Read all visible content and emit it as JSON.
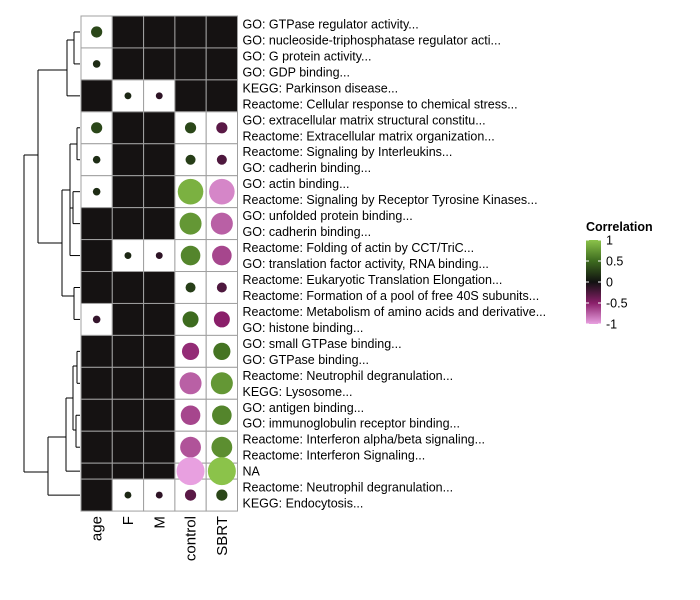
{
  "chart_data": {
    "type": "heatmap",
    "columns": [
      "age",
      "F",
      "M",
      "control",
      "SBRT"
    ],
    "legend": {
      "title": "Correlation",
      "ticks": [
        "1",
        "0.5",
        "0",
        "-0.5",
        "-1"
      ],
      "tick_values": [
        1,
        0.5,
        0,
        -0.5,
        -1
      ],
      "range": [
        -1,
        1
      ]
    },
    "colors": {
      "na": "#ffffff",
      "negative_end": "#e8a0e0",
      "negative_mid": "#8a1f6a",
      "zero": "#111111",
      "positive_mid": "#3d6b1f",
      "positive_end": "#8bc34a",
      "tile": "#151212",
      "grid": "#a0a0a0"
    },
    "rows": [
      {
        "id": "r1",
        "label": "GO: GTPase regulator activity...",
        "values": [
          0.3,
          null,
          null,
          null,
          null
        ]
      },
      {
        "id": "r2",
        "label": "GO: nucleoside-triphosphatase regulator acti...",
        "values": [
          0.3,
          null,
          null,
          null,
          null
        ]
      },
      {
        "id": "r3",
        "label": "GO: G protein activity...",
        "values": [
          0.15,
          null,
          null,
          null,
          null
        ]
      },
      {
        "id": "r4",
        "label": "GO: GDP binding...",
        "values": [
          0.15,
          null,
          null,
          null,
          null
        ]
      },
      {
        "id": "r5",
        "label": "KEGG: Parkinson disease...",
        "values": [
          null,
          0.12,
          -0.12,
          null,
          null
        ]
      },
      {
        "id": "r6",
        "label": "Reactome: Cellular response to chemical stress...",
        "values": [
          null,
          0.12,
          -0.12,
          null,
          null
        ]
      },
      {
        "id": "r7",
        "label": "GO: extracellular matrix structural constitu...",
        "values": [
          0.3,
          null,
          null,
          0.3,
          -0.3
        ]
      },
      {
        "id": "r8",
        "label": "Reactome: Extracellular matrix organization...",
        "values": [
          0.3,
          null,
          null,
          0.3,
          -0.3
        ]
      },
      {
        "id": "r9",
        "label": "Reactome: Signaling by Interleukins...",
        "values": [
          0.15,
          null,
          null,
          0.25,
          -0.25
        ]
      },
      {
        "id": "r10",
        "label": "GO: cadherin binding...",
        "values": [
          0.15,
          null,
          null,
          0.25,
          -0.25
        ]
      },
      {
        "id": "r11",
        "label": "GO: actin binding...",
        "values": [
          0.15,
          null,
          null,
          0.9,
          -0.9
        ]
      },
      {
        "id": "r12",
        "label": "Reactome: Signaling by Receptor Tyrosine Kinases...",
        "values": [
          0.15,
          null,
          null,
          0.9,
          -0.9
        ]
      },
      {
        "id": "r13",
        "label": "GO: unfolded protein binding...",
        "values": [
          null,
          null,
          null,
          0.75,
          -0.75
        ]
      },
      {
        "id": "r14",
        "label": "GO: cadherin binding...",
        "values": [
          null,
          null,
          null,
          0.75,
          -0.75
        ]
      },
      {
        "id": "r15",
        "label": "Reactome: Folding of actin by CCT/TriC...",
        "values": [
          null,
          0.12,
          -0.12,
          0.65,
          -0.65
        ]
      },
      {
        "id": "r16",
        "label": "GO: translation factor activity, RNA binding...",
        "values": [
          null,
          0.12,
          -0.12,
          0.65,
          -0.65
        ]
      },
      {
        "id": "r17",
        "label": "Reactome: Eukaryotic Translation Elongation...",
        "values": [
          null,
          null,
          null,
          0.25,
          -0.25
        ]
      },
      {
        "id": "r18",
        "label": "Reactome: Formation of a pool of free 40S subunits...",
        "values": [
          null,
          null,
          null,
          0.25,
          -0.25
        ]
      },
      {
        "id": "r19",
        "label": "Reactome: Metabolism of amino acids and derivative...",
        "values": [
          -0.15,
          null,
          null,
          0.5,
          -0.5
        ]
      },
      {
        "id": "r20",
        "label": "GO: histone binding...",
        "values": [
          -0.15,
          null,
          null,
          0.5,
          -0.5
        ]
      },
      {
        "id": "r21",
        "label": "GO: small GTPase binding...",
        "values": [
          null,
          null,
          null,
          -0.55,
          0.55
        ]
      },
      {
        "id": "r22",
        "label": "GO: GTPase binding...",
        "values": [
          null,
          null,
          null,
          -0.55,
          0.55
        ]
      },
      {
        "id": "r23",
        "label": "Reactome: Neutrophil degranulation...",
        "values": [
          null,
          null,
          null,
          -0.75,
          0.75
        ]
      },
      {
        "id": "r24",
        "label": "KEGG: Lysosome...",
        "values": [
          null,
          null,
          null,
          -0.75,
          0.75
        ]
      },
      {
        "id": "r25",
        "label": "GO: antigen binding...",
        "values": [
          null,
          null,
          null,
          -0.65,
          0.65
        ]
      },
      {
        "id": "r26",
        "label": "GO: immunoglobulin receptor binding...",
        "values": [
          null,
          null,
          null,
          -0.65,
          0.65
        ]
      },
      {
        "id": "r27",
        "label": "Reactome: Interferon alpha/beta signaling...",
        "values": [
          null,
          null,
          null,
          -0.7,
          0.7
        ]
      },
      {
        "id": "r28",
        "label": "Reactome: Interferon Signaling...",
        "values": [
          null,
          null,
          null,
          -0.7,
          0.7
        ]
      },
      {
        "id": "r29",
        "label": "NA",
        "values": [
          null,
          null,
          null,
          -1,
          1
        ]
      },
      {
        "id": "r30",
        "label": "Reactome: Neutrophil degranulation...",
        "values": [
          null,
          0.12,
          -0.12,
          -0.3,
          0.3
        ]
      },
      {
        "id": "r31",
        "label": "KEGG: Endocytosis...",
        "values": [
          null,
          0.12,
          -0.12,
          -0.3,
          0.3
        ]
      }
    ]
  }
}
